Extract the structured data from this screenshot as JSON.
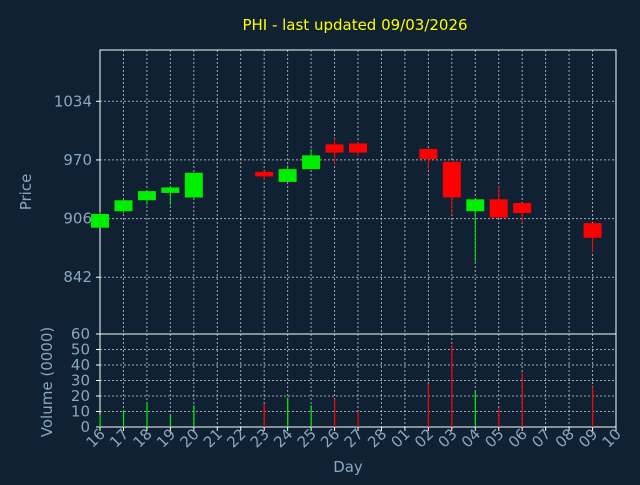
{
  "colors": {
    "background": "#0f2133",
    "axis": "#ffffff",
    "grid": "#cfd6df",
    "label": "#8aa6c1",
    "title": "#ffff00",
    "up": "#00ee00",
    "down": "#ff0000"
  },
  "chart_data": [
    {
      "type": "candlestick",
      "title": "PHI - last updated 09/03/2026",
      "ylabel": "Price",
      "xlabel": "",
      "ylim": [
        780,
        1090
      ],
      "yticks": [
        842,
        906,
        970,
        1034
      ],
      "grid": true,
      "days": [
        "16",
        "17",
        "18",
        "19",
        "20",
        "21",
        "22",
        "23",
        "24",
        "25",
        "26",
        "27",
        "28",
        "01",
        "02",
        "03",
        "04",
        "05",
        "06",
        "07",
        "08",
        "09",
        "10"
      ],
      "candles": [
        {
          "day": "16",
          "open": 896,
          "close": 911,
          "high": 913,
          "low": 896
        },
        {
          "day": "17",
          "open": 914,
          "close": 926,
          "high": 927,
          "low": 912
        },
        {
          "day": "18",
          "open": 926,
          "close": 936,
          "high": 937,
          "low": 921
        },
        {
          "day": "19",
          "open": 934,
          "close": 940,
          "high": 941,
          "low": 921
        },
        {
          "day": "20",
          "open": 929,
          "close": 956,
          "high": 956,
          "low": 929
        },
        {
          "day": "23",
          "open": 957,
          "close": 952,
          "high": 958,
          "low": 948
        },
        {
          "day": "24",
          "open": 946,
          "close": 960,
          "high": 964,
          "low": 946
        },
        {
          "day": "25",
          "open": 960,
          "close": 975,
          "high": 982,
          "low": 960
        },
        {
          "day": "26",
          "open": 987,
          "close": 978,
          "high": 993,
          "low": 966
        },
        {
          "day": "27",
          "open": 988,
          "close": 978,
          "high": 989,
          "low": 974
        },
        {
          "day": "02",
          "open": 982,
          "close": 971,
          "high": 982,
          "low": 960
        },
        {
          "day": "03",
          "open": 968,
          "close": 929,
          "high": 968,
          "low": 910
        },
        {
          "day": "04",
          "open": 914,
          "close": 927,
          "high": 927,
          "low": 859
        },
        {
          "day": "05",
          "open": 927,
          "close": 907,
          "high": 941,
          "low": 907
        },
        {
          "day": "06",
          "open": 923,
          "close": 912,
          "high": 923,
          "low": 901
        },
        {
          "day": "09",
          "open": 901,
          "close": 885,
          "high": 901,
          "low": 869
        }
      ]
    },
    {
      "type": "bar",
      "ylabel": "Volume (0000)",
      "xlabel": "Day",
      "ylim": [
        0,
        60
      ],
      "yticks": [
        0,
        10,
        20,
        30,
        40,
        50,
        60
      ],
      "grid": true,
      "categories": [
        "16",
        "17",
        "18",
        "19",
        "20",
        "23",
        "24",
        "25",
        "26",
        "27",
        "02",
        "03",
        "04",
        "05",
        "06",
        "09"
      ],
      "values": [
        8,
        11,
        16,
        8,
        14,
        15,
        19,
        14,
        18,
        10,
        28,
        53,
        23,
        12,
        35,
        26
      ],
      "colors": [
        "up",
        "up",
        "up",
        "up",
        "up",
        "down",
        "up",
        "up",
        "down",
        "down",
        "down",
        "down",
        "up",
        "down",
        "down",
        "down"
      ]
    }
  ]
}
